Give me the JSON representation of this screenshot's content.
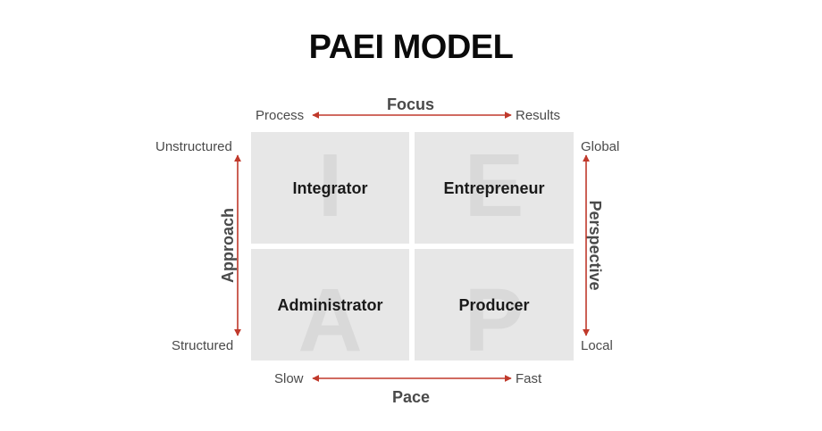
{
  "title": "PAEI MODEL",
  "focus": {
    "title": "Focus",
    "left": "Process",
    "right": "Results"
  },
  "pace": {
    "title": "Pace",
    "left": "Slow",
    "right": "Fast"
  },
  "approach": {
    "title": "Approach",
    "top": "Unstructured",
    "bottom": "Structured"
  },
  "perspective": {
    "title": "Perspective",
    "top": "Global",
    "bottom": "Local"
  },
  "quadrants": {
    "integrator": {
      "letter": "I",
      "name": "Integrator"
    },
    "entrepreneur": {
      "letter": "E",
      "name": "Entrepreneur"
    },
    "administrator": {
      "letter": "A",
      "name": "Administrator"
    },
    "producer": {
      "letter": "P",
      "name": "Producer"
    }
  },
  "colors": {
    "arrow": "#c0392b",
    "quadrant": "#e7e7e7",
    "watermark": "#d9d9d9"
  }
}
